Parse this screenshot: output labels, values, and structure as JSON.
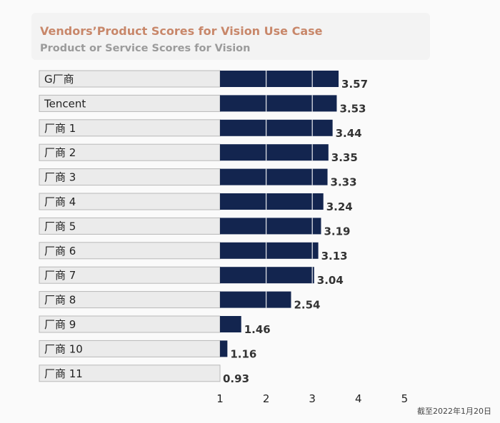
{
  "title": "Vendors’Product Scores for Vision Use Case",
  "subtitle": "Product or Service Scores for Vision",
  "footnote": "截至2022年1月20日",
  "colors": {
    "bar": "#13254f",
    "track": "#ebebeb",
    "track_border": "#b8b8b8",
    "title": "#c8876a",
    "subtitle": "#9b9b9b",
    "text": "#222222",
    "value": "#333333"
  },
  "chart_data": {
    "type": "bar",
    "orientation": "horizontal",
    "categories": [
      "G厂商",
      "Tencent",
      "厂商 1",
      "厂商 2",
      "厂商 3",
      "厂商 4",
      "厂商 5",
      "厂商 6",
      "厂商 7",
      "厂商 8",
      "厂商 9",
      "厂商 10",
      "厂商 11"
    ],
    "values": [
      3.57,
      3.53,
      3.44,
      3.35,
      3.33,
      3.24,
      3.19,
      3.13,
      3.04,
      2.54,
      1.46,
      1.16,
      0.93
    ],
    "value_labels": [
      "3.57",
      "3.53",
      "3.44",
      "3.35",
      "3.33",
      "3.24",
      "3.19",
      "3.13",
      "3.04",
      "2.54",
      "1.46",
      "1.16",
      "0.93"
    ],
    "xlim": [
      1,
      5
    ],
    "xticks": [
      "1",
      "2",
      "3",
      "4",
      "5"
    ],
    "gridlines": "white vertical lines at 2, 3, 4 over bars",
    "legend": "none"
  }
}
